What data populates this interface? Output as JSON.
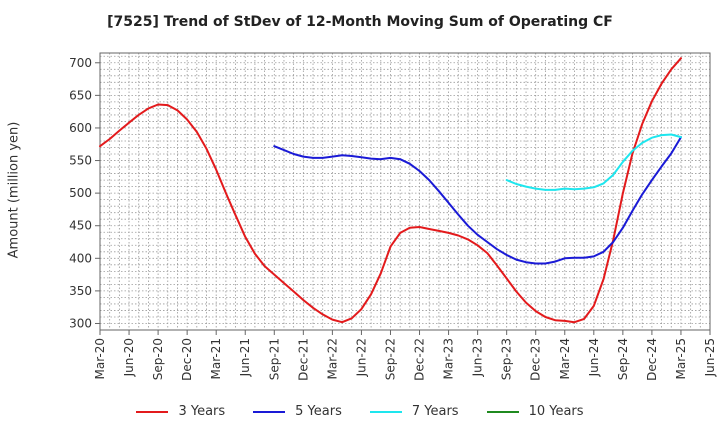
{
  "chart_data": {
    "type": "line",
    "title": "[7525]  Trend of StDev of 12-Month Moving Sum of Operating CF",
    "xlabel": "",
    "ylabel": "Amount (million yen)",
    "ylim": [
      290,
      715
    ],
    "yticks": [
      300,
      350,
      400,
      450,
      500,
      550,
      600,
      650,
      700
    ],
    "grid": true,
    "legend_position": "bottom",
    "x_tick_labels": [
      "Mar-20",
      "Jun-20",
      "Sep-20",
      "Dec-20",
      "Mar-21",
      "Jun-21",
      "Sep-21",
      "Dec-21",
      "Mar-22",
      "Jun-22",
      "Sep-22",
      "Dec-22",
      "Mar-23",
      "Jun-23",
      "Sep-23",
      "Dec-23",
      "Mar-24",
      "Jun-24",
      "Sep-24",
      "Dec-24",
      "Mar-25",
      "Jun-25"
    ],
    "series": [
      {
        "name": "3 Years",
        "color": "#e31a1c",
        "x": [
          "Mar-20",
          "Apr-20",
          "May-20",
          "Jun-20",
          "Jul-20",
          "Aug-20",
          "Sep-20",
          "Oct-20",
          "Nov-20",
          "Dec-20",
          "Jan-21",
          "Feb-21",
          "Mar-21",
          "Apr-21",
          "May-21",
          "Jun-21",
          "Jul-21",
          "Aug-21",
          "Sep-21",
          "Oct-21",
          "Nov-21",
          "Dec-21",
          "Jan-22",
          "Feb-22",
          "Mar-22",
          "Apr-22",
          "May-22",
          "Jun-22",
          "Jul-22",
          "Aug-22",
          "Sep-22",
          "Oct-22",
          "Nov-22",
          "Dec-22",
          "Jan-23",
          "Feb-23",
          "Mar-23",
          "Apr-23",
          "May-23",
          "Jun-23",
          "Jul-23",
          "Aug-23",
          "Sep-23",
          "Oct-23",
          "Nov-23",
          "Dec-23",
          "Jan-24",
          "Feb-24",
          "Mar-24",
          "Apr-24",
          "May-24",
          "Jun-24",
          "Jul-24",
          "Aug-24",
          "Sep-24",
          "Oct-24",
          "Nov-24",
          "Dec-24",
          "Jan-25",
          "Feb-25",
          "Mar-25"
        ],
        "values": [
          572,
          583,
          596,
          608,
          620,
          630,
          636,
          635,
          627,
          613,
          594,
          568,
          536,
          500,
          466,
          433,
          407,
          388,
          375,
          362,
          349,
          336,
          324,
          314,
          306,
          302,
          308,
          322,
          345,
          377,
          418,
          439,
          447,
          448,
          445,
          442,
          439,
          435,
          429,
          420,
          408,
          389,
          369,
          349,
          332,
          319,
          310,
          305,
          304,
          302,
          307,
          327,
          368,
          428,
          500,
          561,
          606,
          641,
          668,
          690,
          707
        ]
      },
      {
        "name": "5 Years",
        "color": "#1a1ad6",
        "x": [
          "Sep-21",
          "Oct-21",
          "Nov-21",
          "Dec-21",
          "Jan-22",
          "Feb-22",
          "Mar-22",
          "Apr-22",
          "May-22",
          "Jun-22",
          "Jul-22",
          "Aug-22",
          "Sep-22",
          "Oct-22",
          "Nov-22",
          "Dec-22",
          "Jan-23",
          "Feb-23",
          "Mar-23",
          "Apr-23",
          "May-23",
          "Jun-23",
          "Jul-23",
          "Aug-23",
          "Sep-23",
          "Oct-23",
          "Nov-23",
          "Dec-23",
          "Jan-24",
          "Feb-24",
          "Mar-24",
          "Apr-24",
          "May-24",
          "Jun-24",
          "Jul-24",
          "Aug-24",
          "Sep-24",
          "Oct-24",
          "Nov-24",
          "Dec-24",
          "Jan-25",
          "Feb-25",
          "Mar-25"
        ],
        "values": [
          572,
          566,
          560,
          556,
          554,
          554,
          556,
          558,
          557,
          555,
          553,
          552,
          554,
          552,
          545,
          534,
          520,
          503,
          485,
          467,
          450,
          436,
          425,
          414,
          405,
          398,
          394,
          392,
          392,
          395,
          400,
          401,
          401,
          403,
          410,
          425,
          447,
          473,
          498,
          520,
          541,
          561,
          586
        ]
      },
      {
        "name": "7 Years",
        "color": "#1ee6ee",
        "x": [
          "Sep-23",
          "Oct-23",
          "Nov-23",
          "Dec-23",
          "Jan-24",
          "Feb-24",
          "Mar-24",
          "Apr-24",
          "May-24",
          "Jun-24",
          "Jul-24",
          "Aug-24",
          "Sep-24",
          "Oct-24",
          "Nov-24",
          "Dec-24",
          "Jan-25",
          "Feb-25",
          "Mar-25"
        ],
        "values": [
          520,
          514,
          510,
          507,
          505,
          505,
          507,
          506,
          507,
          509,
          515,
          528,
          548,
          565,
          577,
          585,
          589,
          590,
          586
        ]
      },
      {
        "name": "10 Years",
        "color": "#1f8a1f",
        "x": [],
        "values": []
      }
    ]
  }
}
